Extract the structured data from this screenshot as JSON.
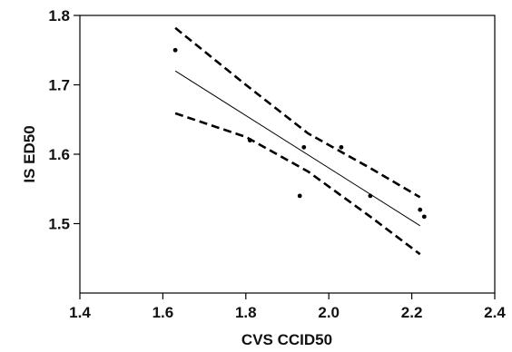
{
  "chart_data": {
    "type": "scatter",
    "title": "",
    "xlabel": "CVS CCID50",
    "ylabel": "IS ED50",
    "xlim": [
      1.4,
      2.4
    ],
    "ylim": [
      1.4,
      1.8
    ],
    "x_ticks": [
      1.4,
      1.6,
      1.8,
      2.0,
      2.2,
      2.4
    ],
    "x_tick_labels": [
      "1.4",
      "1.6",
      "1.8",
      "2.0",
      "2.2",
      "2.4"
    ],
    "y_ticks": [
      1.5,
      1.6,
      1.7,
      1.8
    ],
    "y_tick_labels": [
      "1.5",
      "1.6",
      "1.7",
      "1.8"
    ],
    "grid": false,
    "legend": "none",
    "points": [
      {
        "x": 1.63,
        "y": 1.75
      },
      {
        "x": 1.81,
        "y": 1.62
      },
      {
        "x": 1.93,
        "y": 1.54
      },
      {
        "x": 1.94,
        "y": 1.61
      },
      {
        "x": 2.03,
        "y": 1.61
      },
      {
        "x": 2.1,
        "y": 1.54
      },
      {
        "x": 2.22,
        "y": 1.52
      },
      {
        "x": 2.23,
        "y": 1.51
      }
    ],
    "fit_line": {
      "x": [
        1.63,
        2.22
      ],
      "y": [
        1.72,
        1.497
      ]
    },
    "upper_band": {
      "x": [
        1.63,
        1.8,
        1.95,
        2.1,
        2.22
      ],
      "y": [
        1.782,
        1.7,
        1.63,
        1.58,
        1.538
      ]
    },
    "lower_band": {
      "x": [
        1.63,
        1.8,
        1.95,
        2.1,
        2.22
      ],
      "y": [
        1.659,
        1.625,
        1.575,
        1.51,
        1.456
      ]
    },
    "colors": {
      "points": "#000000",
      "lines": "#000000",
      "axes": "#000000"
    }
  }
}
